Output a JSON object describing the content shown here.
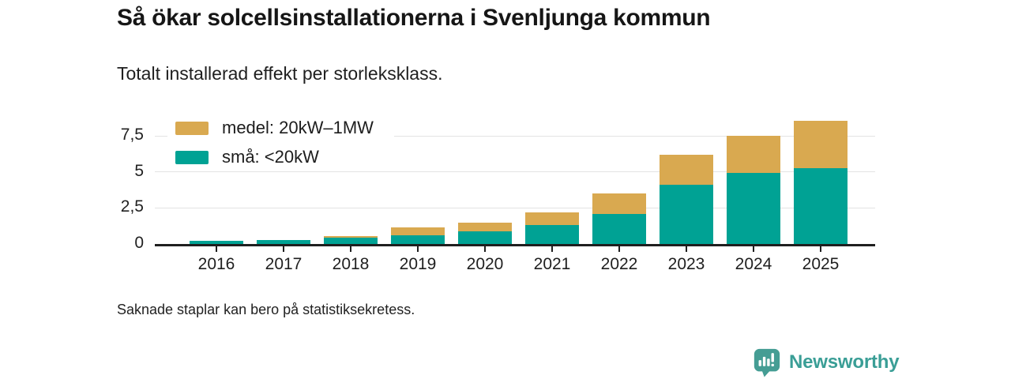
{
  "header": {
    "title": "Så ökar solcellsinstallationerna i Svenljunga kommun",
    "subtitle": "Totalt installerad effekt per storleksklass."
  },
  "legend": [
    {
      "label": "medel: 20kW–1MW",
      "color": "#d9a950"
    },
    {
      "label": "små: <20kW",
      "color": "#00a294"
    }
  ],
  "chart_data": {
    "type": "bar",
    "stacked": true,
    "title": "Så ökar solcellsinstallationerna i Svenljunga kommun",
    "subtitle": "Totalt installerad effekt per storleksklass.",
    "categories": [
      "2016",
      "2017",
      "2018",
      "2019",
      "2020",
      "2021",
      "2022",
      "2023",
      "2024",
      "2025"
    ],
    "series": [
      {
        "name": "små: <20kW",
        "color": "#00a294",
        "values": [
          0.22,
          0.3,
          0.42,
          0.62,
          0.9,
          1.32,
          2.1,
          4.1,
          4.95,
          5.28
        ]
      },
      {
        "name": "medel: 20kW–1MW",
        "color": "#d9a950",
        "values": [
          0,
          0,
          0.15,
          0.55,
          0.6,
          0.9,
          1.4,
          2.1,
          2.55,
          3.3
        ]
      }
    ],
    "xlabel": "",
    "ylabel": "",
    "ylim": [
      0,
      9
    ],
    "yticks": [
      {
        "value": 0,
        "label": "0"
      },
      {
        "value": 2.5,
        "label": "2,5"
      },
      {
        "value": 5,
        "label": "5"
      },
      {
        "value": 7.5,
        "label": "7,5"
      }
    ],
    "grid": true,
    "legend_position": "top-left"
  },
  "footer": {
    "note": "Saknade staplar kan bero på statistiksekretess.",
    "brand": "Newsworthy",
    "brand_color": "#3a9e96"
  },
  "colors": {
    "medel": "#d9a950",
    "sma": "#00a294",
    "axis": "#1f1f1f",
    "gridline": "#e3e3e3",
    "logo": "#459d94"
  }
}
